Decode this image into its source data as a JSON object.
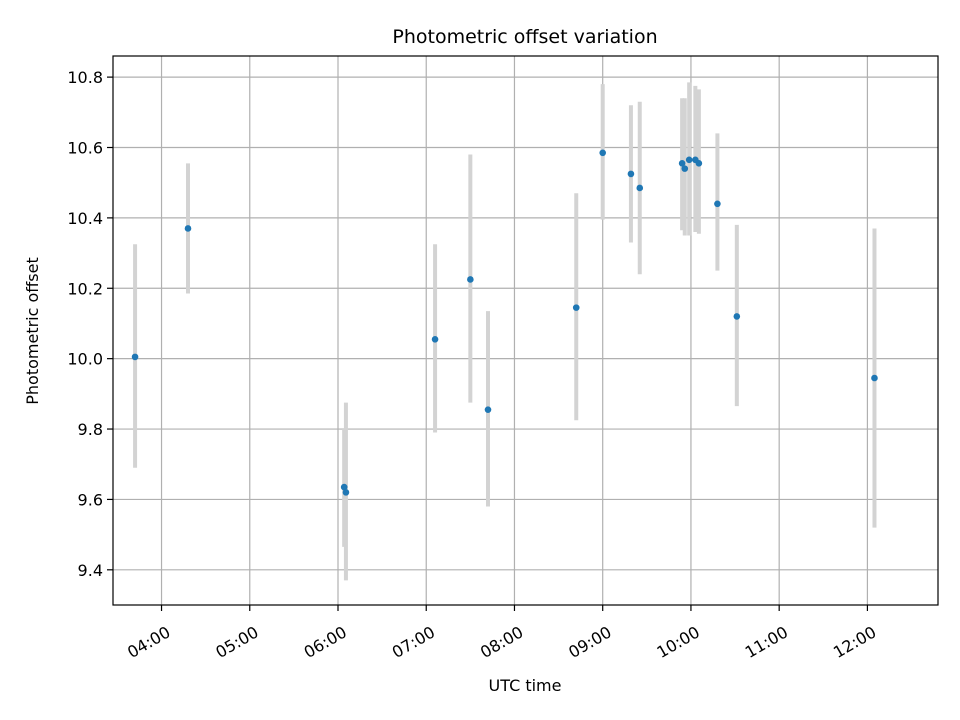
{
  "chart_data": {
    "type": "scatter",
    "title": "Photometric offset variation",
    "xlabel": "UTC time",
    "ylabel": "Photometric offset",
    "x_unit": "hours (UTC)",
    "xlim": [
      3.45,
      12.8
    ],
    "ylim": [
      9.3,
      10.86
    ],
    "grid": true,
    "legend": "none",
    "x_ticks": [
      {
        "value": 4,
        "label": "04:00"
      },
      {
        "value": 5,
        "label": "05:00"
      },
      {
        "value": 6,
        "label": "06:00"
      },
      {
        "value": 7,
        "label": "07:00"
      },
      {
        "value": 8,
        "label": "08:00"
      },
      {
        "value": 9,
        "label": "09:00"
      },
      {
        "value": 10,
        "label": "10:00"
      },
      {
        "value": 11,
        "label": "11:00"
      },
      {
        "value": 12,
        "label": "12:00"
      }
    ],
    "y_ticks": [
      {
        "value": 9.4,
        "label": "9.4"
      },
      {
        "value": 9.6,
        "label": "9.6"
      },
      {
        "value": 9.8,
        "label": "9.8"
      },
      {
        "value": 10.0,
        "label": "10.0"
      },
      {
        "value": 10.2,
        "label": "10.2"
      },
      {
        "value": 10.4,
        "label": "10.4"
      },
      {
        "value": 10.6,
        "label": "10.6"
      },
      {
        "value": 10.8,
        "label": "10.8"
      }
    ],
    "colors": {
      "point": "#1f77b4",
      "errorbar": "#d3d3d3",
      "grid": "#b0b0b0"
    },
    "points": [
      {
        "x": 3.7,
        "y": 10.005,
        "ylo": 9.69,
        "yhi": 10.325
      },
      {
        "x": 4.3,
        "y": 10.37,
        "ylo": 10.185,
        "yhi": 10.555
      },
      {
        "x": 6.07,
        "y": 9.635,
        "ylo": 9.465,
        "yhi": 9.8
      },
      {
        "x": 6.09,
        "y": 9.62,
        "ylo": 9.37,
        "yhi": 9.875
      },
      {
        "x": 7.1,
        "y": 10.055,
        "ylo": 9.79,
        "yhi": 10.325
      },
      {
        "x": 7.5,
        "y": 10.225,
        "ylo": 9.875,
        "yhi": 10.58
      },
      {
        "x": 7.7,
        "y": 9.855,
        "ylo": 9.58,
        "yhi": 10.135
      },
      {
        "x": 8.7,
        "y": 10.145,
        "ylo": 9.825,
        "yhi": 10.47
      },
      {
        "x": 9.0,
        "y": 10.585,
        "ylo": 10.395,
        "yhi": 10.78
      },
      {
        "x": 9.32,
        "y": 10.525,
        "ylo": 10.33,
        "yhi": 10.72
      },
      {
        "x": 9.42,
        "y": 10.485,
        "ylo": 10.24,
        "yhi": 10.73
      },
      {
        "x": 9.9,
        "y": 10.555,
        "ylo": 10.365,
        "yhi": 10.74
      },
      {
        "x": 9.93,
        "y": 10.54,
        "ylo": 10.35,
        "yhi": 10.74
      },
      {
        "x": 9.98,
        "y": 10.565,
        "ylo": 10.35,
        "yhi": 10.785
      },
      {
        "x": 10.05,
        "y": 10.565,
        "ylo": 10.36,
        "yhi": 10.775
      },
      {
        "x": 10.09,
        "y": 10.555,
        "ylo": 10.355,
        "yhi": 10.765
      },
      {
        "x": 10.3,
        "y": 10.44,
        "ylo": 10.25,
        "yhi": 10.64
      },
      {
        "x": 10.52,
        "y": 10.12,
        "ylo": 9.865,
        "yhi": 10.38
      },
      {
        "x": 12.08,
        "y": 9.945,
        "ylo": 9.52,
        "yhi": 10.37
      }
    ]
  }
}
